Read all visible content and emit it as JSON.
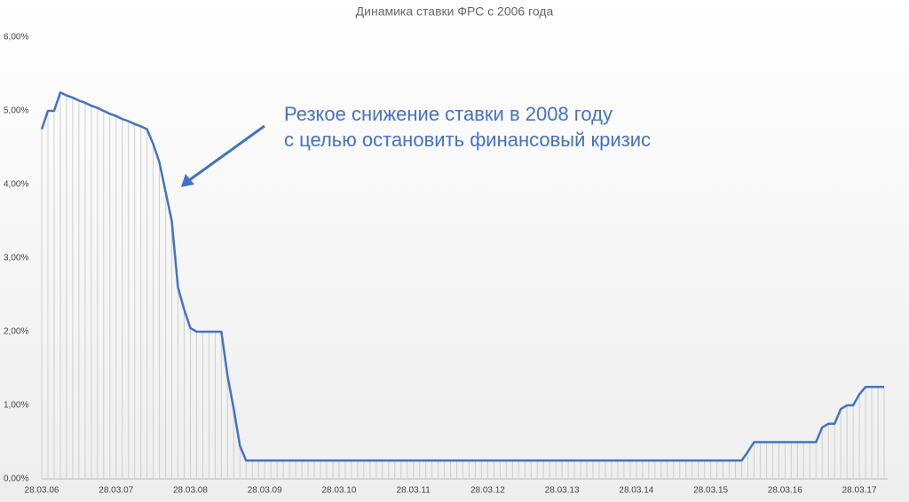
{
  "chart_data": {
    "type": "line",
    "title": "Динамика ставки ФРС с 2006 года",
    "annotation": [
      "Резкое снижение ставки в 2008 году",
      "с целью остановить финансовый кризис"
    ],
    "categories": [
      "28.03.06",
      null,
      null,
      null,
      null,
      null,
      null,
      null,
      null,
      null,
      null,
      null,
      "28.03.07",
      null,
      null,
      null,
      null,
      null,
      null,
      null,
      null,
      null,
      null,
      null,
      "28.03.08",
      null,
      null,
      null,
      null,
      null,
      null,
      null,
      null,
      null,
      null,
      null,
      "28.03.09",
      null,
      null,
      null,
      null,
      null,
      null,
      null,
      null,
      null,
      null,
      null,
      "28.03.10",
      null,
      null,
      null,
      null,
      null,
      null,
      null,
      null,
      null,
      null,
      null,
      "28.03.11",
      null,
      null,
      null,
      null,
      null,
      null,
      null,
      null,
      null,
      null,
      null,
      "28.03.12",
      null,
      null,
      null,
      null,
      null,
      null,
      null,
      null,
      null,
      null,
      null,
      "28.03.13",
      null,
      null,
      null,
      null,
      null,
      null,
      null,
      null,
      null,
      null,
      null,
      "28.03.14",
      null,
      null,
      null,
      null,
      null,
      null,
      null,
      null,
      null,
      null,
      null,
      "28.03.15",
      null,
      null,
      null,
      null,
      null,
      null,
      null,
      null,
      null,
      null,
      null,
      "28.03.16",
      null,
      null,
      null,
      null,
      null,
      null,
      null,
      null,
      null,
      null,
      null,
      "28.03.17",
      null,
      null,
      null,
      null
    ],
    "values": [
      4.75,
      5.0,
      5.0,
      5.25,
      5.21,
      5.18,
      5.14,
      5.11,
      5.07,
      5.04,
      5.0,
      4.96,
      4.93,
      4.89,
      4.86,
      4.82,
      4.79,
      4.75,
      4.55,
      4.3,
      3.9,
      3.5,
      2.6,
      2.3,
      2.05,
      2.0,
      2.0,
      2.0,
      2.0,
      2.0,
      1.4,
      0.95,
      0.45,
      0.25,
      0.25,
      0.25,
      0.25,
      0.25,
      0.25,
      0.25,
      0.25,
      0.25,
      0.25,
      0.25,
      0.25,
      0.25,
      0.25,
      0.25,
      0.25,
      0.25,
      0.25,
      0.25,
      0.25,
      0.25,
      0.25,
      0.25,
      0.25,
      0.25,
      0.25,
      0.25,
      0.25,
      0.25,
      0.25,
      0.25,
      0.25,
      0.25,
      0.25,
      0.25,
      0.25,
      0.25,
      0.25,
      0.25,
      0.25,
      0.25,
      0.25,
      0.25,
      0.25,
      0.25,
      0.25,
      0.25,
      0.25,
      0.25,
      0.25,
      0.25,
      0.25,
      0.25,
      0.25,
      0.25,
      0.25,
      0.25,
      0.25,
      0.25,
      0.25,
      0.25,
      0.25,
      0.25,
      0.25,
      0.25,
      0.25,
      0.25,
      0.25,
      0.25,
      0.25,
      0.25,
      0.25,
      0.25,
      0.25,
      0.25,
      0.25,
      0.25,
      0.25,
      0.25,
      0.25,
      0.25,
      0.37,
      0.5,
      0.5,
      0.5,
      0.5,
      0.5,
      0.5,
      0.5,
      0.5,
      0.5,
      0.5,
      0.5,
      0.7,
      0.75,
      0.75,
      0.95,
      1.0,
      1.0,
      1.15,
      1.25,
      1.25,
      1.25,
      1.25
    ],
    "color": "#4472c4",
    "ylim": [
      0,
      6
    ],
    "yticks": [
      {
        "value": 0,
        "label": "0,00%"
      },
      {
        "value": 1,
        "label": "1,00%"
      },
      {
        "value": 2,
        "label": "2,00%"
      },
      {
        "value": 3,
        "label": "3,00%"
      },
      {
        "value": 4,
        "label": "4,00%"
      },
      {
        "value": 5,
        "label": "5,00%"
      },
      {
        "value": 6,
        "label": "6,00%"
      }
    ],
    "grid": false,
    "drop_lines": true
  }
}
